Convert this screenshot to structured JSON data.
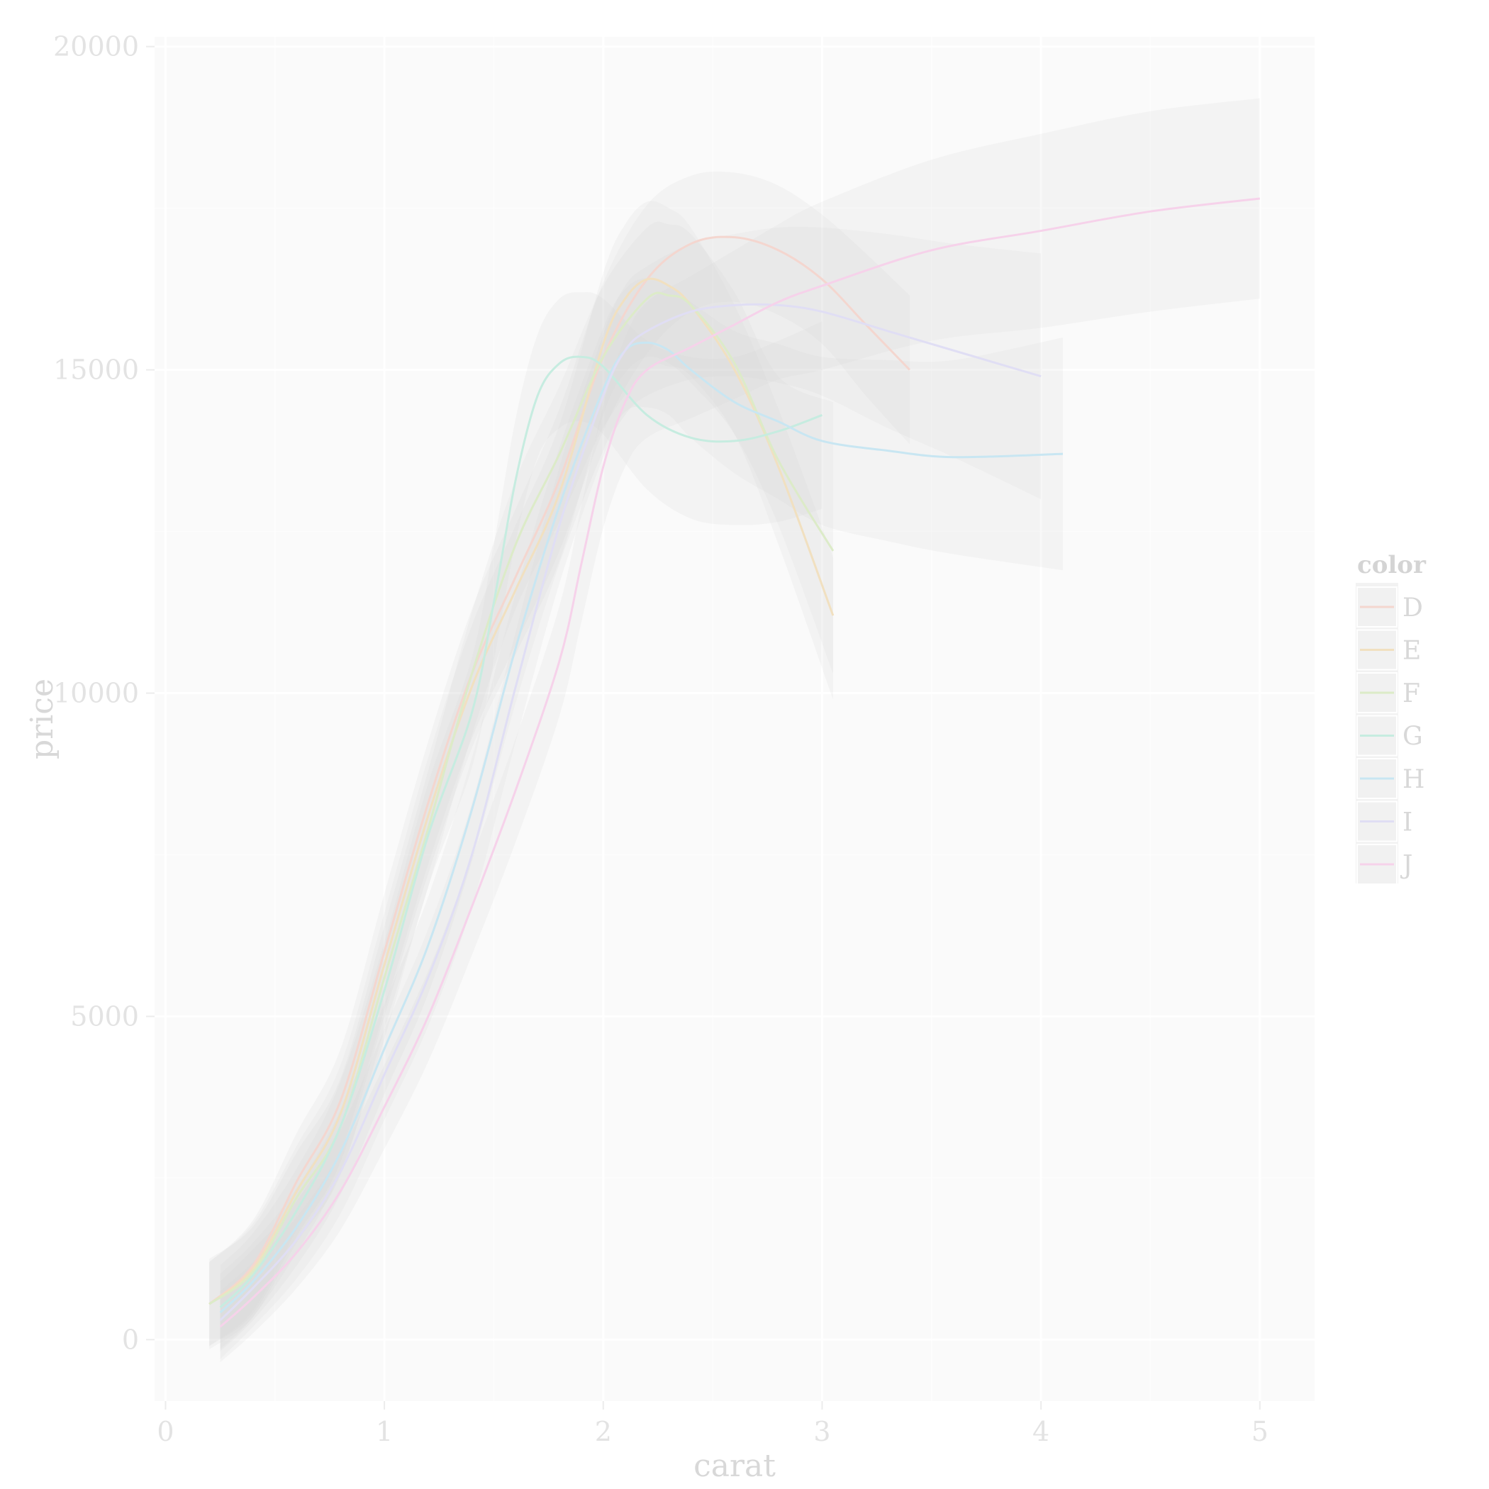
{
  "chart_data": {
    "type": "line",
    "title": "",
    "xlabel": "carat",
    "ylabel": "price",
    "xlim": [
      -0.05,
      5.25
    ],
    "ylim": [
      -950,
      20150
    ],
    "x_ticks": [
      0,
      1,
      2,
      3,
      4,
      5
    ],
    "y_ticks": [
      0,
      5000,
      10000,
      15000,
      20000
    ],
    "x_tick_labels": [
      "0",
      "1",
      "2",
      "3",
      "4",
      "5"
    ],
    "y_tick_labels": [
      "0",
      "5000",
      "10000",
      "15000",
      "20000"
    ],
    "grid": true,
    "confidence_bands": true,
    "legend": {
      "title": "color",
      "position": "right",
      "entries": [
        "D",
        "E",
        "F",
        "G",
        "H",
        "I",
        "J"
      ]
    },
    "series": [
      {
        "name": "D",
        "color": "#f4d6cf",
        "x": [
          0.2,
          0.4,
          0.6,
          0.8,
          1.0,
          1.2,
          1.4,
          1.6,
          1.8,
          2.0,
          2.2,
          2.4,
          2.6,
          2.8,
          3.0,
          3.2,
          3.4
        ],
        "y": [
          550,
          1150,
          2450,
          3700,
          6000,
          8300,
          10300,
          11800,
          13300,
          15200,
          16400,
          16950,
          17050,
          16850,
          16400,
          15700,
          15000
        ],
        "band": [
          650,
          700,
          750,
          800,
          900,
          950,
          1000,
          1050,
          1100,
          1150,
          1150,
          1050,
          1000,
          1000,
          1000,
          1100,
          1150
        ]
      },
      {
        "name": "E",
        "color": "#f1e0c0",
        "x": [
          0.2,
          0.4,
          0.6,
          0.8,
          1.0,
          1.2,
          1.4,
          1.6,
          1.8,
          2.0,
          2.1,
          2.2,
          2.3,
          2.4,
          2.6,
          2.8,
          3.05
        ],
        "y": [
          550,
          1100,
          2300,
          3500,
          5800,
          8100,
          10100,
          11600,
          13100,
          15400,
          16100,
          16400,
          16300,
          16000,
          15000,
          13500,
          11200
        ],
        "band": [
          650,
          700,
          700,
          750,
          800,
          900,
          950,
          1000,
          1050,
          1100,
          1150,
          1200,
          1200,
          1200,
          1000,
          900,
          900
        ]
      },
      {
        "name": "F",
        "color": "#dcebc8",
        "x": [
          0.2,
          0.4,
          0.6,
          0.8,
          1.0,
          1.2,
          1.4,
          1.6,
          1.8,
          2.0,
          2.2,
          2.3,
          2.4,
          2.6,
          2.8,
          3.05
        ],
        "y": [
          550,
          1050,
          2200,
          3300,
          5600,
          7900,
          10300,
          12300,
          13700,
          15200,
          16100,
          16150,
          16000,
          15100,
          13600,
          12200
        ],
        "band": [
          700,
          700,
          700,
          750,
          800,
          900,
          950,
          1000,
          1050,
          1100,
          1100,
          1100,
          1100,
          1100,
          1300,
          2300
        ]
      },
      {
        "name": "G",
        "color": "#c6ece0",
        "x": [
          0.25,
          0.4,
          0.6,
          0.8,
          1.0,
          1.2,
          1.4,
          1.5,
          1.6,
          1.7,
          1.8,
          1.9,
          2.0,
          2.2,
          2.4,
          2.6,
          2.8,
          3.0
        ],
        "y": [
          500,
          1000,
          2000,
          3300,
          5400,
          7800,
          9700,
          11400,
          13300,
          14600,
          15100,
          15200,
          15050,
          14300,
          13950,
          13900,
          14050,
          14300
        ],
        "band": [
          650,
          650,
          650,
          700,
          750,
          800,
          850,
          900,
          950,
          950,
          1000,
          1000,
          1050,
          1150,
          1250,
          1300,
          1400,
          1450
        ]
      },
      {
        "name": "H",
        "color": "#c8e6f2",
        "x": [
          0.25,
          0.4,
          0.6,
          0.8,
          1.0,
          1.2,
          1.4,
          1.6,
          1.8,
          2.0,
          2.1,
          2.2,
          2.3,
          2.4,
          2.6,
          2.8,
          3.0,
          3.3,
          3.6,
          4.1
        ],
        "y": [
          420,
          900,
          1750,
          2900,
          4500,
          6100,
          8200,
          10700,
          12900,
          14700,
          15300,
          15420,
          15300,
          15000,
          14500,
          14200,
          13900,
          13750,
          13650,
          13700
        ],
        "band": [
          600,
          600,
          600,
          650,
          700,
          750,
          800,
          850,
          900,
          950,
          950,
          1000,
          1000,
          1050,
          1100,
          1200,
          1300,
          1400,
          1500,
          1800
        ]
      },
      {
        "name": "I",
        "color": "#e0def4",
        "x": [
          0.25,
          0.4,
          0.6,
          0.8,
          1.0,
          1.2,
          1.4,
          1.6,
          1.8,
          2.0,
          2.1,
          2.2,
          2.4,
          2.6,
          2.8,
          3.0,
          3.3,
          3.6,
          4.0
        ],
        "y": [
          300,
          800,
          1550,
          2600,
          4100,
          5600,
          7500,
          10100,
          12600,
          14600,
          15300,
          15600,
          15900,
          16000,
          16000,
          15900,
          15600,
          15300,
          14900
        ],
        "band": [
          600,
          600,
          600,
          650,
          700,
          750,
          800,
          850,
          900,
          950,
          1000,
          1000,
          1050,
          1100,
          1200,
          1300,
          1500,
          1650,
          1900
        ]
      },
      {
        "name": "J",
        "color": "#f6d2ea",
        "x": [
          0.25,
          0.4,
          0.6,
          0.8,
          1.0,
          1.2,
          1.4,
          1.6,
          1.8,
          1.9,
          2.0,
          2.1,
          2.2,
          2.4,
          2.6,
          2.8,
          3.0,
          3.5,
          4.0,
          4.5,
          5.0
        ],
        "y": [
          200,
          650,
          1350,
          2300,
          3600,
          5000,
          6700,
          8500,
          10500,
          12000,
          13500,
          14500,
          15000,
          15350,
          15700,
          16050,
          16300,
          16850,
          17150,
          17450,
          17650
        ],
        "band": [
          550,
          550,
          550,
          600,
          650,
          700,
          750,
          800,
          850,
          900,
          950,
          1000,
          1050,
          1100,
          1150,
          1200,
          1300,
          1400,
          1500,
          1550,
          1550
        ]
      }
    ]
  }
}
